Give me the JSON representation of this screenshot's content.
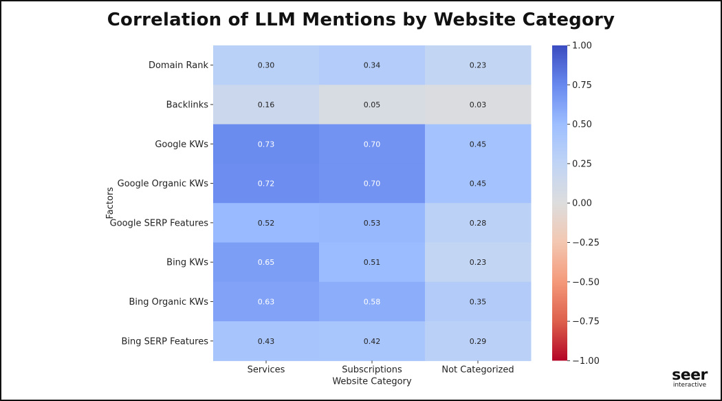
{
  "title": "Correlation of LLM Mentions by Website Category",
  "logo": {
    "word": "seer",
    "sub": "interactive"
  },
  "chart_data": {
    "type": "heatmap",
    "title": "Correlation of LLM Mentions by Website Category",
    "xlabel": "Website Category",
    "ylabel": "Factors",
    "x_categories": [
      "Services",
      "Subscriptions",
      "Not Categorized"
    ],
    "y_categories": [
      "Domain Rank",
      "Backlinks",
      "Google KWs",
      "Google Organic KWs",
      "Google SERP Features",
      "Bing KWs",
      "Bing Organic KWs",
      "Bing SERP Features"
    ],
    "values": [
      [
        0.3,
        0.34,
        0.23
      ],
      [
        0.16,
        0.05,
        0.03
      ],
      [
        0.73,
        0.7,
        0.45
      ],
      [
        0.72,
        0.7,
        0.45
      ],
      [
        0.52,
        0.53,
        0.28
      ],
      [
        0.65,
        0.51,
        0.23
      ],
      [
        0.63,
        0.58,
        0.35
      ],
      [
        0.43,
        0.42,
        0.29
      ]
    ],
    "vlim": [
      -1.0,
      1.0
    ],
    "colormap": "coolwarm",
    "colorbar_ticks": [
      "1.00",
      "0.75",
      "0.50",
      "0.25",
      "0.00",
      "−0.25",
      "−0.50",
      "−0.75",
      "−1.00"
    ],
    "colorbar_tick_values": [
      1.0,
      0.75,
      0.5,
      0.25,
      0.0,
      -0.25,
      -0.5,
      -0.75,
      -1.0
    ]
  }
}
